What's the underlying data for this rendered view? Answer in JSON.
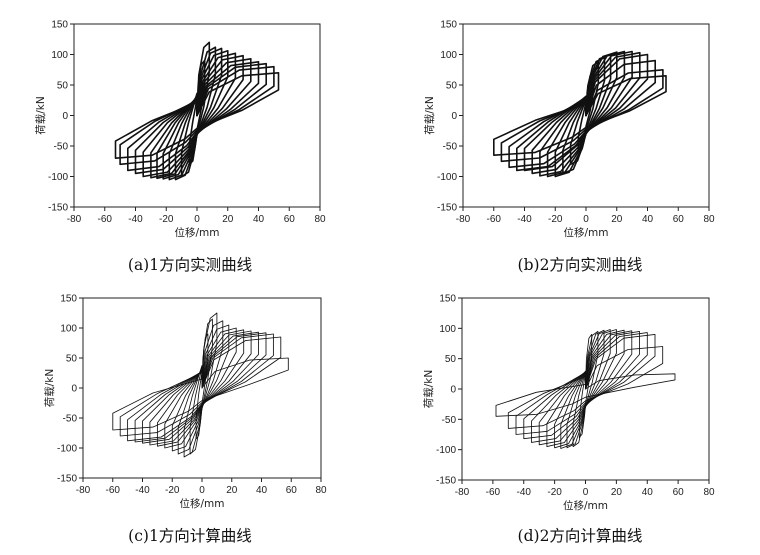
{
  "chart_data": [
    {
      "type": "line",
      "caption": "(a)1方向实测曲线",
      "xlabel": "位移/mm",
      "ylabel": "荷载/kN",
      "xlim": [
        -80,
        80
      ],
      "ylim": [
        -150,
        150
      ],
      "xticks": [
        "-80",
        "-60",
        "-40",
        "-20",
        "0",
        "20",
        "40",
        "60",
        "80"
      ],
      "yticks": [
        "-150",
        "-100",
        "-50",
        "0",
        "50",
        "100",
        "150"
      ],
      "style": "measured",
      "cycles": [
        {
          "dpos": 5,
          "ppos": 90,
          "dneg": -5,
          "pneg": -80
        },
        {
          "dpos": 8,
          "ppos": 120,
          "dneg": -10,
          "pneg": -100
        },
        {
          "dpos": 12,
          "ppos": 112,
          "dneg": -14,
          "pneg": -105
        },
        {
          "dpos": 16,
          "ppos": 110,
          "dneg": -18,
          "pneg": -105
        },
        {
          "dpos": 20,
          "ppos": 106,
          "dneg": -22,
          "pneg": -104
        },
        {
          "dpos": 25,
          "ppos": 102,
          "dneg": -26,
          "pneg": -103
        },
        {
          "dpos": 30,
          "ppos": 98,
          "dneg": -30,
          "pneg": -102
        },
        {
          "dpos": 35,
          "ppos": 93,
          "dneg": -35,
          "pneg": -100
        },
        {
          "dpos": 40,
          "ppos": 88,
          "dneg": -40,
          "pneg": -95
        },
        {
          "dpos": 45,
          "ppos": 85,
          "dneg": -45,
          "pneg": -90
        },
        {
          "dpos": 50,
          "ppos": 80,
          "dneg": -50,
          "pneg": -80
        },
        {
          "dpos": 53,
          "ppos": 70,
          "dneg": -53,
          "pneg": -70
        }
      ]
    },
    {
      "type": "line",
      "caption": "(b)2方向实测曲线",
      "xlabel": "位移/mm",
      "ylabel": "荷载/kN",
      "xlim": [
        -80,
        80
      ],
      "ylim": [
        -150,
        150
      ],
      "xticks": [
        "-80",
        "-60",
        "-40",
        "-20",
        "0",
        "20",
        "40",
        "60",
        "80"
      ],
      "yticks": [
        "-150",
        "-100",
        "-50",
        "0",
        "50",
        "100",
        "150"
      ],
      "style": "measured",
      "cycles": [
        {
          "dpos": 5,
          "ppos": 70,
          "dneg": -5,
          "pneg": -60
        },
        {
          "dpos": 8,
          "ppos": 88,
          "dneg": -10,
          "pneg": -80
        },
        {
          "dpos": 12,
          "ppos": 95,
          "dneg": -15,
          "pneg": -95
        },
        {
          "dpos": 16,
          "ppos": 100,
          "dneg": -20,
          "pneg": -100
        },
        {
          "dpos": 20,
          "ppos": 104,
          "dneg": -25,
          "pneg": -100
        },
        {
          "dpos": 25,
          "ppos": 105,
          "dneg": -30,
          "pneg": -99
        },
        {
          "dpos": 30,
          "ppos": 105,
          "dneg": -35,
          "pneg": -95
        },
        {
          "dpos": 35,
          "ppos": 103,
          "dneg": -40,
          "pneg": -90
        },
        {
          "dpos": 40,
          "ppos": 100,
          "dneg": -45,
          "pneg": -90
        },
        {
          "dpos": 45,
          "ppos": 90,
          "dneg": -50,
          "pneg": -85
        },
        {
          "dpos": 50,
          "ppos": 75,
          "dneg": -55,
          "pneg": -75
        },
        {
          "dpos": 52,
          "ppos": 65,
          "dneg": -60,
          "pneg": -65
        }
      ]
    },
    {
      "type": "line",
      "caption": "(c)1方向计算曲线",
      "xlabel": "位移/mm",
      "ylabel": "荷载/kN",
      "xlim": [
        -80,
        80
      ],
      "ylim": [
        -150,
        150
      ],
      "xticks": [
        "-80",
        "-60",
        "-40",
        "-20",
        "0",
        "20",
        "40",
        "60",
        "80"
      ],
      "yticks": [
        "-150",
        "-100",
        "-50",
        "0",
        "50",
        "100",
        "150"
      ],
      "style": "computed",
      "cycles": [
        {
          "dpos": 4,
          "ppos": 90,
          "dneg": -4,
          "pneg": -85
        },
        {
          "dpos": 7,
          "ppos": 115,
          "dneg": -8,
          "pneg": -110
        },
        {
          "dpos": 10,
          "ppos": 125,
          "dneg": -12,
          "pneg": -115
        },
        {
          "dpos": 14,
          "ppos": 112,
          "dneg": -16,
          "pneg": -110
        },
        {
          "dpos": 18,
          "ppos": 105,
          "dneg": -20,
          "pneg": -105
        },
        {
          "dpos": 23,
          "ppos": 100,
          "dneg": -25,
          "pneg": -100
        },
        {
          "dpos": 28,
          "ppos": 97,
          "dneg": -30,
          "pneg": -97
        },
        {
          "dpos": 33,
          "ppos": 95,
          "dneg": -35,
          "pneg": -95
        },
        {
          "dpos": 38,
          "ppos": 93,
          "dneg": -40,
          "pneg": -92
        },
        {
          "dpos": 43,
          "ppos": 92,
          "dneg": -45,
          "pneg": -90
        },
        {
          "dpos": 48,
          "ppos": 90,
          "dneg": -50,
          "pneg": -88
        },
        {
          "dpos": 53,
          "ppos": 85,
          "dneg": -55,
          "pneg": -80
        },
        {
          "dpos": 58,
          "ppos": 50,
          "dneg": -60,
          "pneg": -70
        }
      ]
    },
    {
      "type": "line",
      "caption": "(d)2方向计算曲线",
      "xlabel": "位移/mm",
      "ylabel": "荷载/kN",
      "xlim": [
        -80,
        80
      ],
      "ylim": [
        -150,
        150
      ],
      "xticks": [
        "-80",
        "-60",
        "-40",
        "-20",
        "0",
        "20",
        "40",
        "60",
        "80"
      ],
      "yticks": [
        "-150",
        "-100",
        "-50",
        "0",
        "50",
        "100",
        "150"
      ],
      "style": "computed",
      "cycles": [
        {
          "dpos": 4,
          "ppos": 90,
          "dneg": -4,
          "pneg": -80
        },
        {
          "dpos": 8,
          "ppos": 95,
          "dneg": -8,
          "pneg": -95
        },
        {
          "dpos": 12,
          "ppos": 97,
          "dneg": -12,
          "pneg": -97
        },
        {
          "dpos": 16,
          "ppos": 98,
          "dneg": -16,
          "pneg": -98
        },
        {
          "dpos": 20,
          "ppos": 98,
          "dneg": -20,
          "pneg": -97
        },
        {
          "dpos": 25,
          "ppos": 97,
          "dneg": -25,
          "pneg": -95
        },
        {
          "dpos": 30,
          "ppos": 96,
          "dneg": -30,
          "pneg": -92
        },
        {
          "dpos": 35,
          "ppos": 95,
          "dneg": -35,
          "pneg": -88
        },
        {
          "dpos": 40,
          "ppos": 93,
          "dneg": -40,
          "pneg": -82
        },
        {
          "dpos": 45,
          "ppos": 90,
          "dneg": -45,
          "pneg": -75
        },
        {
          "dpos": 50,
          "ppos": 70,
          "dneg": -50,
          "pneg": -65
        },
        {
          "dpos": 58,
          "ppos": 25,
          "dneg": -58,
          "pneg": -45
        }
      ]
    }
  ]
}
